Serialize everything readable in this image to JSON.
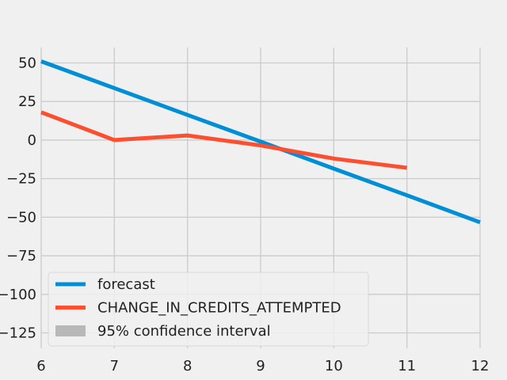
{
  "chart_data": {
    "type": "line",
    "title": "",
    "xlabel": "",
    "ylabel": "",
    "xlim": [
      6,
      12
    ],
    "ylim": [
      -135,
      60
    ],
    "x_ticks": [
      6,
      7,
      8,
      9,
      10,
      11,
      12
    ],
    "y_ticks": [
      50,
      25,
      0,
      -25,
      -50,
      -75,
      -100,
      -125
    ],
    "grid": true,
    "legend_position": "lower-left",
    "series": [
      {
        "name": "forecast",
        "color": "#008fd5",
        "x": [
          6,
          7,
          8,
          9,
          10,
          11,
          12
        ],
        "y": [
          51,
          33.7,
          16.3,
          -1.0,
          -18.5,
          -35.8,
          -53.3
        ]
      },
      {
        "name": "CHANGE_IN_CREDITS_ATTEMPTED",
        "color": "#fc4f30",
        "x": [
          6,
          7,
          8,
          9,
          10,
          11
        ],
        "y": [
          18,
          0,
          3,
          -3.5,
          -12,
          -18
        ]
      }
    ],
    "confidence_band": {
      "name": "95% confidence interval",
      "color": "#b8b8b8"
    }
  }
}
